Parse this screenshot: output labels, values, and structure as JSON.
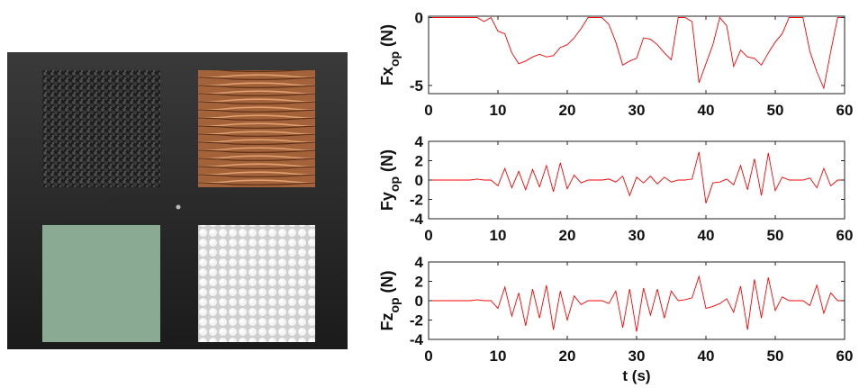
{
  "chart_data": [
    {
      "type": "line",
      "ylabel": "Fx",
      "ylabel_subscript": "op",
      "ylabel_unit": "(N)",
      "x": [
        0,
        1,
        2,
        3,
        4,
        5,
        6,
        7,
        8,
        9,
        10,
        11,
        12,
        13,
        14,
        15,
        16,
        17,
        18,
        19,
        20,
        21,
        22,
        23,
        24,
        25,
        26,
        27,
        28,
        29,
        30,
        31,
        32,
        33,
        34,
        35,
        36,
        37,
        38,
        39,
        40,
        41,
        42,
        43,
        44,
        45,
        46,
        47,
        48,
        49,
        50,
        51,
        52,
        53,
        54,
        55,
        56,
        57,
        58,
        59,
        60
      ],
      "values": [
        0,
        0,
        0,
        0,
        0,
        0,
        0,
        0,
        -0.3,
        0,
        -1.0,
        -1.2,
        -2.6,
        -3.4,
        -3.2,
        -2.9,
        -2.7,
        -2.9,
        -2.8,
        -2.2,
        -2.0,
        -1.5,
        -0.8,
        0,
        0,
        0,
        -0.5,
        -1.8,
        -3.5,
        -3.2,
        -3.0,
        -1.5,
        -1.6,
        -2.0,
        -2.6,
        -3.1,
        0,
        0,
        -0.3,
        -4.8,
        -3.4,
        -2.0,
        0,
        -0.6,
        -3.6,
        -2.4,
        -2.9,
        -3.0,
        -3.5,
        -2.6,
        -1.8,
        -1.2,
        0,
        0,
        0,
        -2.5,
        -4.0,
        -5.2,
        -2.5,
        0,
        0
      ],
      "color": "#ff0000",
      "xlim": [
        0,
        60
      ],
      "xticks": [
        0,
        10,
        20,
        30,
        40,
        50,
        60
      ],
      "ylim": [
        -5.6,
        0.1
      ],
      "yticks": [
        -5,
        0
      ]
    },
    {
      "type": "line",
      "ylabel": "Fy",
      "ylabel_subscript": "op",
      "ylabel_unit": "(N)",
      "x": [
        0,
        1,
        2,
        3,
        4,
        5,
        6,
        7,
        8,
        9,
        10,
        11,
        12,
        13,
        14,
        15,
        16,
        17,
        18,
        19,
        20,
        21,
        22,
        23,
        24,
        25,
        26,
        27,
        28,
        29,
        30,
        31,
        32,
        33,
        34,
        35,
        36,
        37,
        38,
        39,
        40,
        41,
        42,
        43,
        44,
        45,
        46,
        47,
        48,
        49,
        50,
        51,
        52,
        53,
        54,
        55,
        56,
        57,
        58,
        59,
        60
      ],
      "values": [
        0,
        0,
        0,
        0,
        0,
        0,
        0,
        0.1,
        0,
        0,
        -0.6,
        1.2,
        -0.8,
        0.9,
        -1.0,
        1.1,
        -0.7,
        1.5,
        -1.2,
        1.8,
        -0.9,
        0.5,
        -0.3,
        0,
        0,
        0,
        0.1,
        -0.2,
        0.4,
        -1.6,
        0.3,
        -0.3,
        0.4,
        -0.4,
        0.3,
        -0.2,
        0,
        0,
        0.1,
        2.9,
        -2.4,
        -0.3,
        -0.2,
        0.1,
        -0.5,
        1.5,
        -1.0,
        2.2,
        -1.6,
        2.8,
        -1.1,
        0.3,
        0,
        0,
        0,
        0.2,
        -0.8,
        1.2,
        -0.6,
        0,
        0
      ],
      "color": "#ff0000",
      "xlim": [
        0,
        60
      ],
      "xticks": [
        0,
        10,
        20,
        30,
        40,
        50,
        60
      ],
      "ylim": [
        -4,
        4
      ],
      "yticks": [
        -4,
        -2,
        0,
        2,
        4
      ]
    },
    {
      "type": "line",
      "ylabel": "Fz",
      "ylabel_subscript": "op",
      "ylabel_unit": "(N)",
      "xlabel": "t (s)",
      "x": [
        0,
        1,
        2,
        3,
        4,
        5,
        6,
        7,
        8,
        9,
        10,
        11,
        12,
        13,
        14,
        15,
        16,
        17,
        18,
        19,
        20,
        21,
        22,
        23,
        24,
        25,
        26,
        27,
        28,
        29,
        30,
        31,
        32,
        33,
        34,
        35,
        36,
        37,
        38,
        39,
        40,
        41,
        42,
        43,
        44,
        45,
        46,
        47,
        48,
        49,
        50,
        51,
        52,
        53,
        54,
        55,
        56,
        57,
        58,
        59,
        60
      ],
      "values": [
        0,
        0,
        0,
        0,
        0,
        0,
        0,
        0.1,
        0,
        0,
        -0.8,
        1.4,
        -1.6,
        0.8,
        -2.6,
        1.2,
        -1.8,
        1.6,
        -3.0,
        1.0,
        -2.0,
        0.5,
        -0.4,
        0,
        0,
        0,
        -0.3,
        1.0,
        -2.8,
        1.2,
        -3.2,
        1.3,
        -1.5,
        1.2,
        -1.8,
        1.0,
        0,
        0.1,
        0.3,
        2.5,
        -0.8,
        -0.6,
        -0.3,
        0.2,
        -1.2,
        1.5,
        -3.0,
        2.2,
        -1.8,
        2.4,
        -1.0,
        0.4,
        0,
        0,
        0,
        -0.5,
        1.6,
        -1.3,
        0.8,
        0,
        0
      ],
      "color": "#ff0000",
      "xlim": [
        0,
        60
      ],
      "xticks": [
        0,
        10,
        20,
        30,
        40,
        50,
        60
      ],
      "ylim": [
        -4,
        4
      ],
      "yticks": [
        -4,
        -2,
        0,
        2,
        4
      ]
    }
  ]
}
